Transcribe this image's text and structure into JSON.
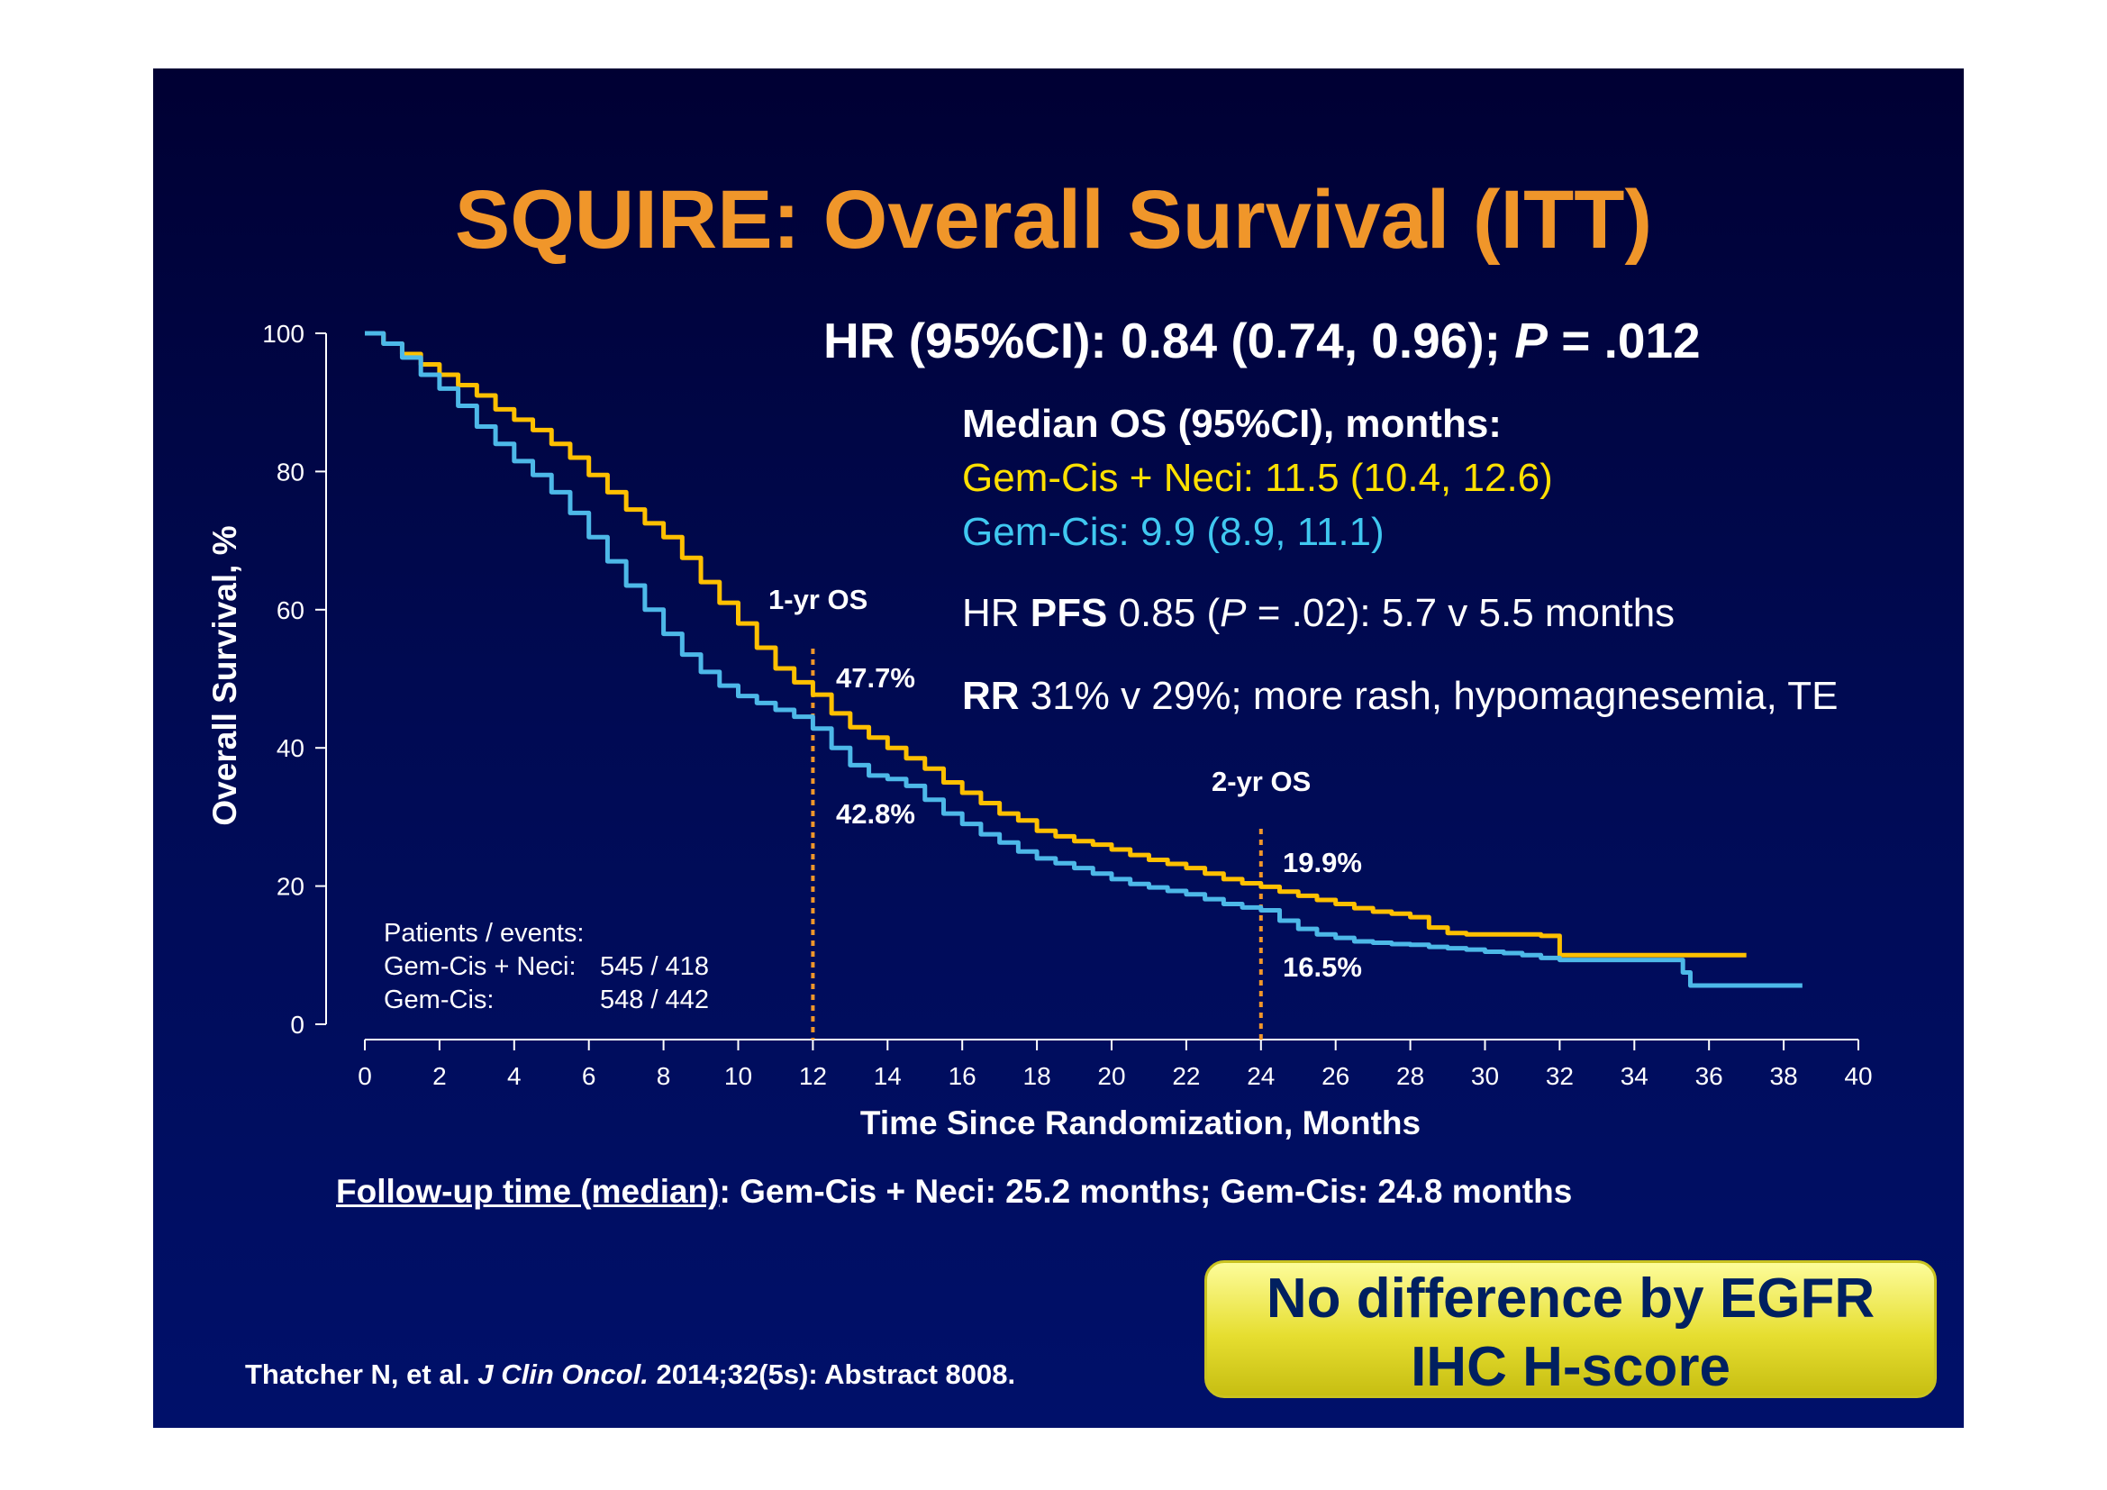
{
  "title": "SQUIRE: Overall Survival (ITT)",
  "hr_line": {
    "prefix": "HR (95%CI): 0.84 (0.74, 0.96); ",
    "p_label": "P",
    "suffix": " = .012"
  },
  "median": {
    "heading": "Median OS (95%CI), months:",
    "neci": "Gem-Cis + Neci: 11.5 (10.4, 12.6)",
    "gemcis": "Gem-Cis: 9.9  (8.9, 11.1)"
  },
  "pfs": {
    "pre": "HR ",
    "bold": "PFS",
    "mid": " 0.85 (",
    "p_label": "P",
    "post": " = .02): 5.7 v 5.5 months"
  },
  "rr": {
    "bold": "RR",
    "text": " 31% v 29%; more rash, hypomagnesemia, TE"
  },
  "annotations": {
    "os1_label": "1-yr OS",
    "os1_neci": "47.7%",
    "os1_gemcis": "42.8%",
    "os2_label": "2-yr OS",
    "os2_neci": "19.9%",
    "os2_gemcis": "16.5%"
  },
  "patients_events": {
    "heading": "Patients / events:",
    "rows": [
      {
        "arm": "Gem-Cis + Neci:",
        "value": "545 / 418"
      },
      {
        "arm": "Gem-Cis:",
        "value": "548 / 442"
      }
    ]
  },
  "follow_up": {
    "label": "Follow-up time (median)",
    "text": ": Gem-Cis + Neci: 25.2 months; Gem-Cis: 24.8 months"
  },
  "citation": {
    "pre": "Thatcher N, et al. ",
    "journal": "J Clin Oncol.",
    "post": " 2014;32(5s): Abstract 8008."
  },
  "callout": {
    "line1": "No difference by EGFR",
    "line2": "IHC H-score"
  },
  "colors": {
    "neci": "#ffc000",
    "gemcis": "#4db8e8",
    "title": "#f0962a",
    "marker": "#f0962a"
  },
  "chart_data": {
    "type": "line",
    "title": "",
    "xlabel": "Time Since Randomization, Months",
    "ylabel": "Overall Survival, %",
    "xlim": [
      0,
      40
    ],
    "ylim": [
      0,
      100
    ],
    "xticks": [
      0,
      2,
      4,
      6,
      8,
      10,
      12,
      14,
      16,
      18,
      20,
      22,
      24,
      26,
      28,
      30,
      32,
      34,
      36,
      38,
      40
    ],
    "yticks": [
      0,
      20,
      40,
      60,
      80,
      100
    ],
    "reference_lines_x": [
      12,
      24
    ],
    "series": [
      {
        "name": "Gem-Cis + Neci",
        "color": "#ffc000",
        "x": [
          0,
          0.5,
          1,
          1.5,
          2,
          2.5,
          3,
          3.5,
          4,
          4.5,
          5,
          5.5,
          6,
          6.5,
          7,
          7.5,
          8,
          8.5,
          9,
          9.5,
          10,
          10.5,
          11,
          11.5,
          12,
          12.5,
          13,
          13.5,
          14,
          14.5,
          15,
          15.5,
          16,
          16.5,
          17,
          17.5,
          18,
          18.5,
          19,
          19.5,
          20,
          20.5,
          21,
          21.5,
          22,
          22.5,
          23,
          23.5,
          24,
          24.5,
          25,
          25.5,
          26,
          26.5,
          27,
          27.5,
          28,
          28.5,
          29,
          29.5,
          30,
          30.5,
          31,
          31.5,
          32,
          32.5,
          33,
          33.5,
          34,
          34.5,
          35,
          35.5,
          36,
          36.5,
          37
        ],
        "y": [
          100,
          98.5,
          97,
          95.5,
          94,
          92.5,
          91,
          89,
          87.5,
          86,
          84,
          82,
          79.5,
          77,
          74.5,
          72.5,
          70.5,
          67.5,
          64,
          61,
          58,
          54.5,
          51.5,
          49.5,
          47.7,
          45,
          43,
          41.5,
          40,
          38.5,
          37,
          35,
          33.5,
          32,
          30.5,
          29.5,
          28,
          27.2,
          26.5,
          26,
          25.3,
          24.5,
          23.8,
          23.2,
          22.6,
          21.8,
          21,
          20.4,
          19.9,
          19.2,
          18.6,
          18,
          17.4,
          16.8,
          16.3,
          16,
          15.5,
          14,
          13.2,
          13,
          13,
          13,
          13,
          12.8,
          10,
          10,
          10,
          10,
          10,
          10,
          10,
          10,
          10,
          10,
          10
        ]
      },
      {
        "name": "Gem-Cis",
        "color": "#4db8e8",
        "x": [
          0,
          0.5,
          1,
          1.5,
          2,
          2.5,
          3,
          3.5,
          4,
          4.5,
          5,
          5.5,
          6,
          6.5,
          7,
          7.5,
          8,
          8.5,
          9,
          9.5,
          10,
          10.5,
          11,
          11.5,
          12,
          12.5,
          13,
          13.5,
          14,
          14.5,
          15,
          15.5,
          16,
          16.5,
          17,
          17.5,
          18,
          18.5,
          19,
          19.5,
          20,
          20.5,
          21,
          21.5,
          22,
          22.5,
          23,
          23.5,
          24,
          24.5,
          25,
          25.5,
          26,
          26.5,
          27,
          27.5,
          28,
          28.5,
          29,
          29.5,
          30,
          30.5,
          31,
          31.5,
          32,
          32.5,
          33,
          33.5,
          34,
          34.5,
          35,
          35.3,
          35.5,
          36,
          36.5,
          37,
          37.5,
          38,
          38.5
        ],
        "y": [
          100,
          98.5,
          96.5,
          94,
          92,
          89.5,
          86.5,
          84,
          81.5,
          79.5,
          77,
          74,
          70.5,
          67,
          63.5,
          60,
          56.5,
          53.5,
          51,
          49,
          47.5,
          46.5,
          45.5,
          44.5,
          42.8,
          40,
          37.5,
          36,
          35.5,
          34.5,
          32.5,
          30.5,
          29,
          27.5,
          26.3,
          25,
          24,
          23.3,
          22.6,
          21.8,
          21,
          20.3,
          19.8,
          19.3,
          18.8,
          18.1,
          17.4,
          16.9,
          16.5,
          15,
          13.8,
          13,
          12.5,
          12,
          11.8,
          11.6,
          11.5,
          11.2,
          11,
          10.8,
          10.5,
          10.3,
          10,
          9.6,
          9.3,
          9.3,
          9.3,
          9.3,
          9.3,
          9.3,
          9.3,
          7.5,
          5.6,
          5.6,
          5.6,
          5.6,
          5.6,
          5.6,
          5.6
        ]
      }
    ]
  }
}
